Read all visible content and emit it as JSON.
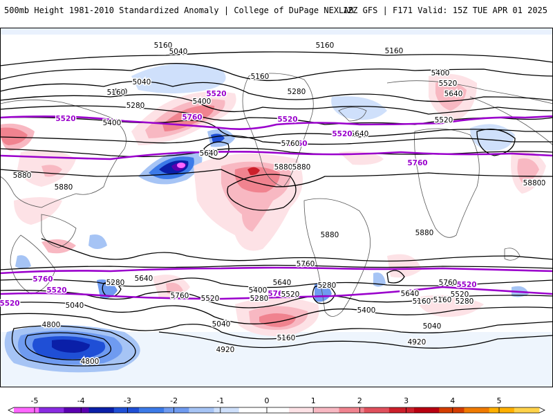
{
  "header": {
    "left": "500mb Height 1981-2010 Standardized Anomaly | College of DuPage NEXLAB",
    "right": "12Z GFS | F171 Valid: 15Z TUE APR 01 2025"
  },
  "colorbar": {
    "ticks": [
      "-5",
      "-4",
      "-3",
      "-2",
      "-1",
      "0",
      "1",
      "2",
      "3",
      "4",
      "5"
    ],
    "bins": [
      {
        "color": "#ff66ff"
      },
      {
        "color": "#8a2be2"
      },
      {
        "color": "#5a00b0"
      },
      {
        "color": "#0a1fa8"
      },
      {
        "color": "#1f4fd6"
      },
      {
        "color": "#3c7ae8"
      },
      {
        "color": "#6f9bf0"
      },
      {
        "color": "#a6c4f5"
      },
      {
        "color": "#cfe0fb"
      },
      {
        "color": "#ffffff"
      },
      {
        "color": "#ffffff"
      },
      {
        "color": "#fde2e6"
      },
      {
        "color": "#f8b8c2"
      },
      {
        "color": "#f0838f"
      },
      {
        "color": "#e0505c"
      },
      {
        "color": "#cc1f2a"
      },
      {
        "color": "#b80010"
      },
      {
        "color": "#d43d00"
      },
      {
        "color": "#f07a00"
      },
      {
        "color": "#ffb000"
      },
      {
        "color": "#ffd24a"
      }
    ]
  },
  "contours": {
    "labels": [
      "5160",
      "5160",
      "5160",
      "5040",
      "5040",
      "5160",
      "5160",
      "5520",
      "5400",
      "5280",
      "5640",
      "5520",
      "5400",
      "5160",
      "5280",
      "5520",
      "5400",
      "5760",
      "5520",
      "5520",
      "5640",
      "5760",
      "5640",
      "5520",
      "5760",
      "5880",
      "5880",
      "5880",
      "5760",
      "5880",
      "5760",
      "5880",
      "5880",
      "5880",
      "5760",
      "5760",
      "5760",
      "5760",
      "5640",
      "5640",
      "5640",
      "5520",
      "5520",
      "5520",
      "5520",
      "5280",
      "5520",
      "5400",
      "5280",
      "5280",
      "5160",
      "5040",
      "5040",
      "5160",
      "4920",
      "4920",
      "4800",
      "4800",
      "5520",
      "5040",
      "5280",
      "5760",
      "5640",
      "5160",
      "5400"
    ],
    "highlight_color": "#9a00cc"
  }
}
